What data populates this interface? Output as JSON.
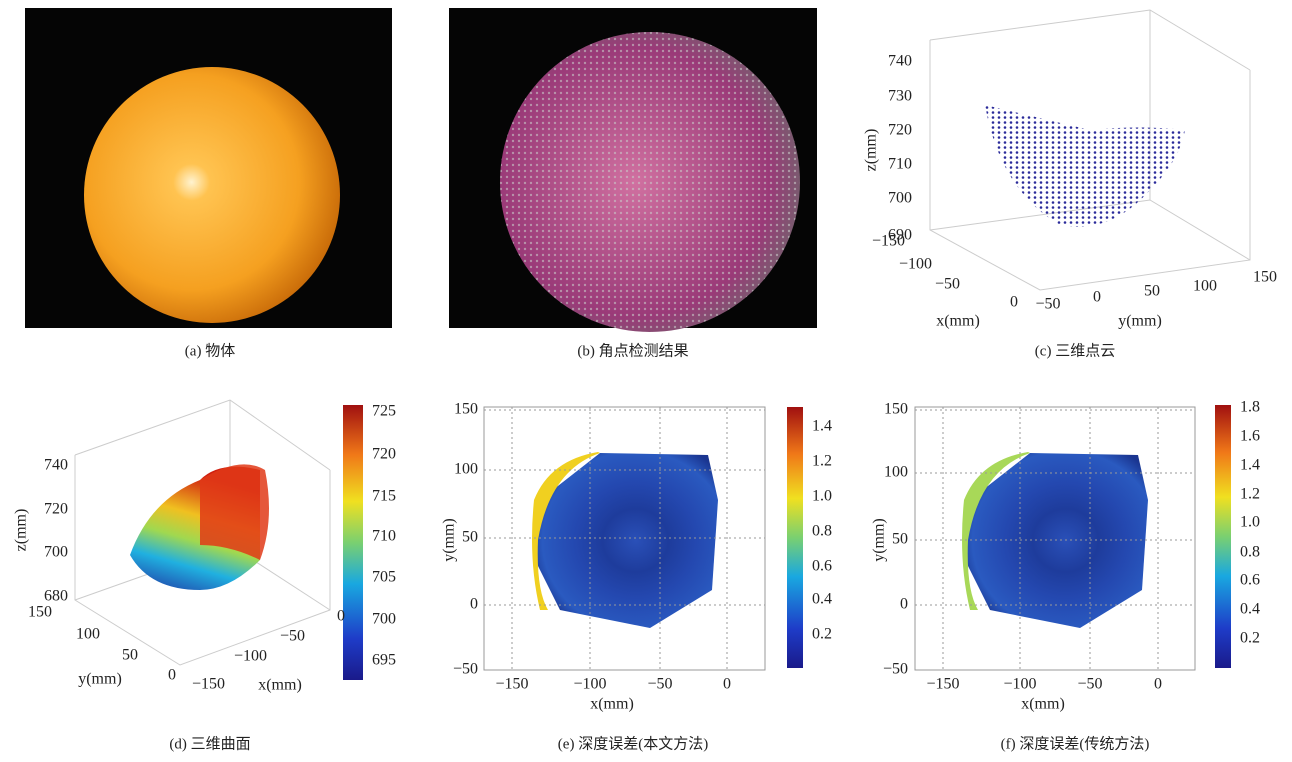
{
  "panels": [
    {
      "caption": "(a) 物体"
    },
    {
      "caption": "(b) 角点检测结果"
    },
    {
      "caption": "(c) 三维点云",
      "z_label": "z(mm)",
      "x_label": "x(mm)",
      "y_label": "y(mm)",
      "z_ticks": [
        "740",
        "730",
        "720",
        "710",
        "700",
        "690"
      ],
      "x_ticks": [
        "−150",
        "−100",
        "−50",
        "0"
      ],
      "y_ticks": [
        "−50",
        "0",
        "50",
        "100",
        "150"
      ]
    },
    {
      "caption": "(d) 三维曲面",
      "z_label": "z(mm)",
      "x_label": "x(mm)",
      "y_label": "y(mm)",
      "z_ticks": [
        "740",
        "720",
        "700",
        "680"
      ],
      "y_ticks": [
        "150",
        "100",
        "50",
        "0"
      ],
      "x_ticks": [
        "0",
        "−50",
        "−100",
        "−150"
      ],
      "colorbar_ticks": [
        "725",
        "720",
        "715",
        "710",
        "705",
        "700",
        "695"
      ]
    },
    {
      "caption": "(e) 深度误差(本文方法)",
      "x_label": "x(mm)",
      "y_label": "y(mm)",
      "y_ticks": [
        "150",
        "100",
        "50",
        "0",
        "−50"
      ],
      "x_ticks": [
        "−150",
        "−100",
        "−50",
        "0"
      ],
      "colorbar_ticks": [
        "1.4",
        "1.2",
        "1.0",
        "0.8",
        "0.6",
        "0.4",
        "0.2"
      ]
    },
    {
      "caption": "(f) 深度误差(传统方法)",
      "x_label": "x(mm)",
      "y_label": "y(mm)",
      "y_ticks": [
        "150",
        "100",
        "50",
        "0",
        "−50"
      ],
      "x_ticks": [
        "−150",
        "−100",
        "−50",
        "0"
      ],
      "colorbar_ticks": [
        "1.8",
        "1.6",
        "1.4",
        "1.2",
        "1.0",
        "0.8",
        "0.6",
        "0.4",
        "0.2"
      ]
    }
  ]
}
